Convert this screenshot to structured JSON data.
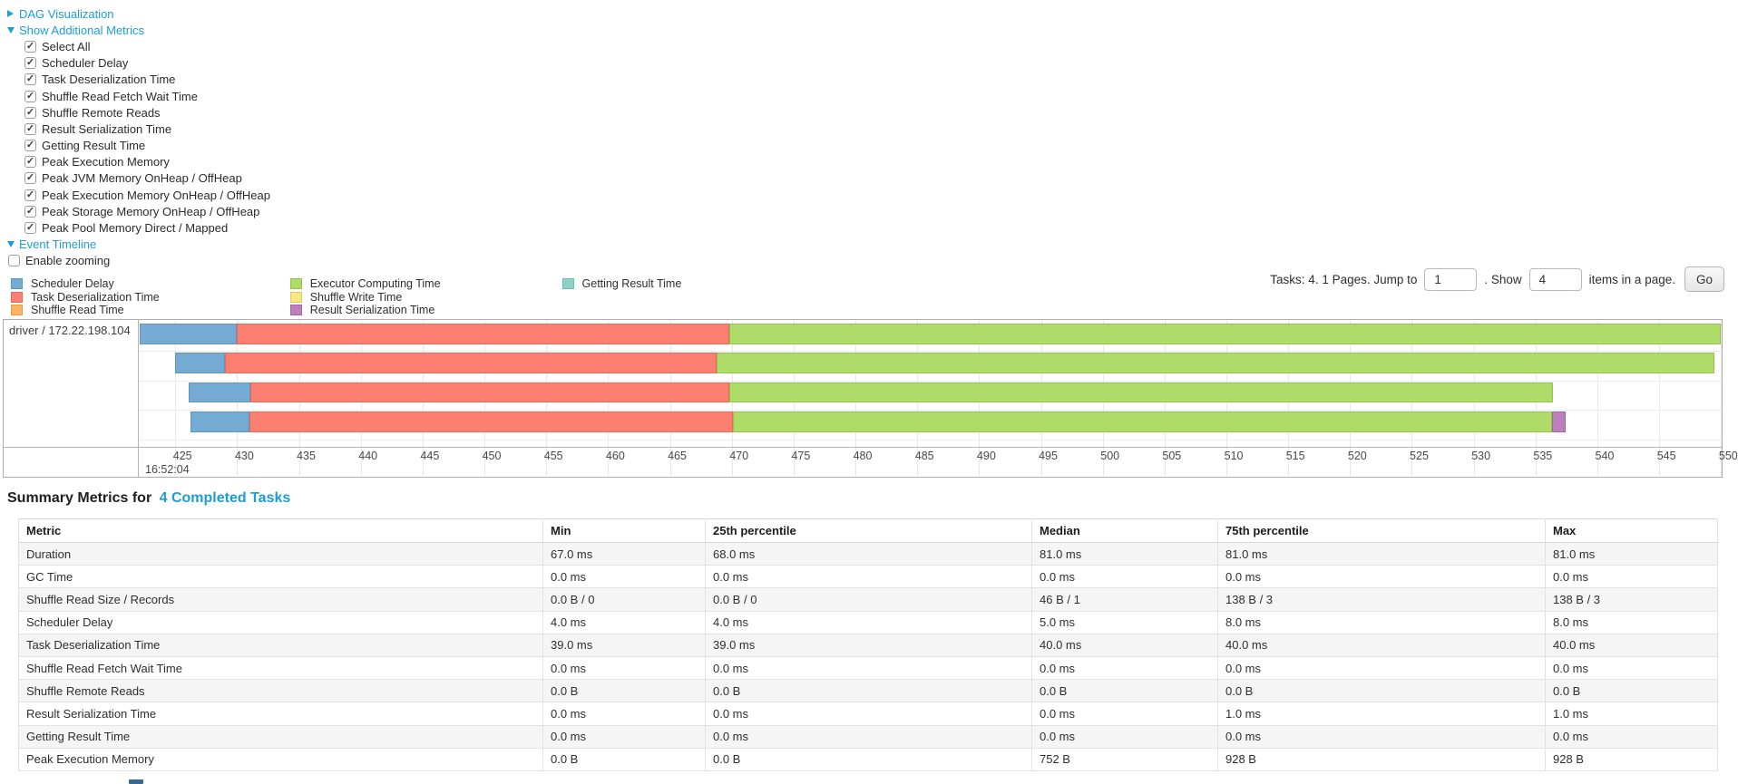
{
  "controls": {
    "dag_link": "DAG Visualization",
    "metrics_link": "Show Additional Metrics",
    "timeline_link": "Event Timeline",
    "enable_zooming_label": "Enable zooming",
    "metric_checkboxes": [
      "Select All",
      "Scheduler Delay",
      "Task Deserialization Time",
      "Shuffle Read Fetch Wait Time",
      "Shuffle Remote Reads",
      "Result Serialization Time",
      "Getting Result Time",
      "Peak Execution Memory",
      "Peak JVM Memory OnHeap / OffHeap",
      "Peak Execution Memory OnHeap / OffHeap",
      "Peak Storage Memory OnHeap / OffHeap",
      "Peak Pool Memory Direct / Mapped"
    ]
  },
  "pagination": {
    "prefix": "Tasks: 4. 1 Pages. Jump to",
    "jump_value": "1",
    "mid": ". Show",
    "show_value": "4",
    "suffix": "items in a page.",
    "go_label": "Go"
  },
  "chart_data": {
    "type": "timeline",
    "group_label": "driver / 172.22.198.104",
    "axis": {
      "min": 422.05,
      "max": 550.05,
      "tick_first": 425,
      "tick_step": 5,
      "tick_last": 550,
      "major_label": "16:52:04"
    },
    "metrics": {
      "scheduler_delay": {
        "label": "Scheduler Delay",
        "fill": "#74ABD2",
        "border": "#5F96BE"
      },
      "task_deserialization": {
        "label": "Task Deserialization Time",
        "fill": "#FB8072",
        "border": "#E56A5C"
      },
      "shuffle_read": {
        "label": "Shuffle Read Time",
        "fill": "#FDB462",
        "border": "#E89C48"
      },
      "executor_computing": {
        "label": "Executor Computing Time",
        "fill": "#AFDB69",
        "border": "#94C445"
      },
      "shuffle_write": {
        "label": "Shuffle Write Time",
        "fill": "#F9E784",
        "border": "#E0CB5E"
      },
      "result_serialization": {
        "label": "Result Serialization Time",
        "fill": "#BC80BD",
        "border": "#A365A4"
      },
      "getting_result": {
        "label": "Getting Result Time",
        "fill": "#8DD3C7",
        "border": "#6FBCAE"
      }
    },
    "legend_columns": [
      [
        "scheduler_delay",
        "task_deserialization",
        "shuffle_read"
      ],
      [
        "executor_computing",
        "shuffle_write",
        "result_serialization"
      ],
      [
        "getting_result"
      ]
    ],
    "tasks": [
      {
        "segments": [
          {
            "metric": "scheduler_delay",
            "start": 422.1,
            "end": 430.0
          },
          {
            "metric": "task_deserialization",
            "start": 430.0,
            "end": 469.8
          },
          {
            "metric": "executor_computing",
            "start": 469.8,
            "end": 550.0
          }
        ]
      },
      {
        "segments": [
          {
            "metric": "scheduler_delay",
            "start": 425.0,
            "end": 429.0
          },
          {
            "metric": "task_deserialization",
            "start": 429.0,
            "end": 468.8
          },
          {
            "metric": "executor_computing",
            "start": 468.8,
            "end": 549.5
          }
        ]
      },
      {
        "segments": [
          {
            "metric": "scheduler_delay",
            "start": 426.1,
            "end": 431.1
          },
          {
            "metric": "task_deserialization",
            "start": 431.1,
            "end": 469.8
          },
          {
            "metric": "executor_computing",
            "start": 469.8,
            "end": 536.4
          }
        ]
      },
      {
        "segments": [
          {
            "metric": "scheduler_delay",
            "start": 426.2,
            "end": 431.0
          },
          {
            "metric": "task_deserialization",
            "start": 431.0,
            "end": 470.1
          },
          {
            "metric": "executor_computing",
            "start": 470.1,
            "end": 536.3
          },
          {
            "metric": "result_serialization",
            "start": 536.3,
            "end": 537.4
          }
        ]
      }
    ]
  },
  "summary": {
    "title_prefix": "Summary Metrics for",
    "title_link": "4 Completed Tasks",
    "headers": [
      "Metric",
      "Min",
      "25th percentile",
      "Median",
      "75th percentile",
      "Max"
    ],
    "rows": [
      [
        "Duration",
        "67.0 ms",
        "68.0 ms",
        "81.0 ms",
        "81.0 ms",
        "81.0 ms"
      ],
      [
        "GC Time",
        "0.0 ms",
        "0.0 ms",
        "0.0 ms",
        "0.0 ms",
        "0.0 ms"
      ],
      [
        "Shuffle Read Size / Records",
        "0.0 B / 0",
        "0.0 B / 0",
        "46 B / 1",
        "138 B / 3",
        "138 B / 3"
      ],
      [
        "Scheduler Delay",
        "4.0 ms",
        "4.0 ms",
        "5.0 ms",
        "8.0 ms",
        "8.0 ms"
      ],
      [
        "Task Deserialization Time",
        "39.0 ms",
        "39.0 ms",
        "40.0 ms",
        "40.0 ms",
        "40.0 ms"
      ],
      [
        "Shuffle Read Fetch Wait Time",
        "0.0 ms",
        "0.0 ms",
        "0.0 ms",
        "0.0 ms",
        "0.0 ms"
      ],
      [
        "Shuffle Remote Reads",
        "0.0 B",
        "0.0 B",
        "0.0 B",
        "0.0 B",
        "0.0 B"
      ],
      [
        "Result Serialization Time",
        "0.0 ms",
        "0.0 ms",
        "0.0 ms",
        "1.0 ms",
        "1.0 ms"
      ],
      [
        "Getting Result Time",
        "0.0 ms",
        "0.0 ms",
        "0.0 ms",
        "0.0 ms",
        "0.0 ms"
      ],
      [
        "Peak Execution Memory",
        "0.0 B",
        "0.0 B",
        "752 B",
        "928 B",
        "928 B"
      ]
    ]
  }
}
